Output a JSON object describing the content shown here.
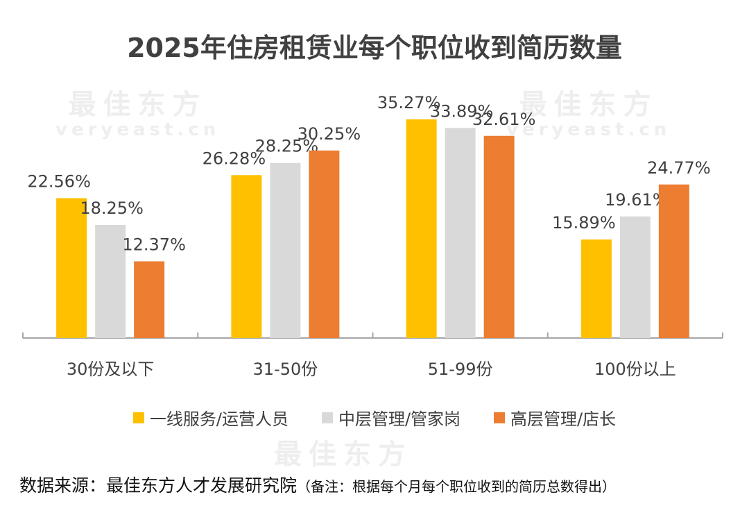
{
  "watermark": {
    "cn": "最佳东方",
    "en": "veryeast.cn"
  },
  "chart_data": {
    "type": "bar",
    "title": "2025年住房租赁业每个职位收到简历数量",
    "categories": [
      "30份及以下",
      "31-50份",
      "51-99份",
      "100份以上"
    ],
    "series": [
      {
        "name": "一线服务/运营人员",
        "color": "#FFC000",
        "values": [
          22.56,
          26.28,
          35.27,
          15.89
        ],
        "labels": [
          "22.56%",
          "26.28%",
          "35.27%",
          "15.89%"
        ]
      },
      {
        "name": "中层管理/管家岗",
        "color": "#D9D9D9",
        "values": [
          18.25,
          28.25,
          33.89,
          19.61
        ],
        "labels": [
          "18.25%",
          "28.25%",
          "33.89%",
          "19.61%"
        ]
      },
      {
        "name": "高层管理/店长",
        "color": "#ED7D31",
        "values": [
          12.37,
          30.25,
          32.61,
          24.77
        ],
        "labels": [
          "12.37%",
          "30.25%",
          "32.61%",
          "24.77%"
        ]
      }
    ],
    "xlabel": "",
    "ylabel": "",
    "ylim": [
      0,
      40
    ],
    "grid": false,
    "legend": "bottom"
  },
  "source": {
    "label": "数据来源：最佳东方人才发展研究院",
    "note": "（备注：根据每个月每个职位收到的简历总数得出）"
  }
}
